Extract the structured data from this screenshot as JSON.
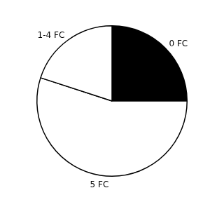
{
  "chart_data": {
    "type": "pie",
    "categories": [
      "0 FC",
      "5 FC",
      "1-4 FC"
    ],
    "values": [
      25,
      55,
      20
    ],
    "colors": [
      "#000000",
      "#ffffff",
      "#ffffff"
    ]
  }
}
